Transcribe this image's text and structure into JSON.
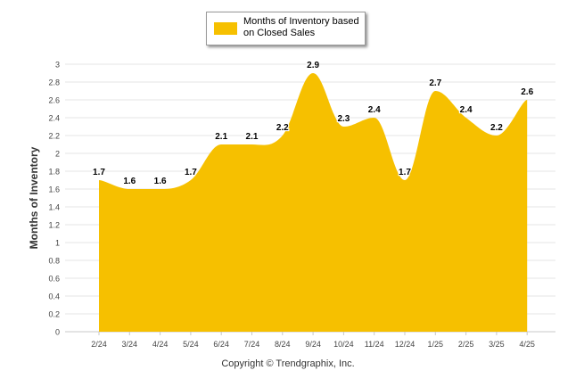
{
  "copyright": "Copyright © Trendgraphix, Inc.",
  "colors": {
    "area": "#F6C000",
    "grid": "#e6e6e6",
    "axis_text": "#444444",
    "label_text": "#000000"
  },
  "chart_data": {
    "type": "area",
    "title": "",
    "xlabel": "",
    "ylabel": "Months of Inventory",
    "ylim": [
      0,
      3
    ],
    "y_ticks": [
      "0",
      "0.2",
      "0.4",
      "0.6",
      "0.8",
      "1",
      "1.2",
      "1.4",
      "1.6",
      "1.8",
      "2",
      "2.2",
      "2.4",
      "2.6",
      "2.8",
      "3"
    ],
    "grid": true,
    "legend_position": "top-center",
    "categories": [
      "2/24",
      "3/24",
      "4/24",
      "5/24",
      "6/24",
      "7/24",
      "8/24",
      "9/24",
      "10/24",
      "11/24",
      "12/24",
      "1/25",
      "2/25",
      "3/25",
      "4/25"
    ],
    "series": [
      {
        "name": "Months of Inventory based on Closed Sales",
        "values": [
          1.7,
          1.6,
          1.6,
          1.7,
          2.1,
          2.1,
          2.2,
          2.9,
          2.3,
          2.4,
          1.7,
          2.7,
          2.4,
          2.2,
          2.6
        ],
        "labels": [
          "1.7",
          "1.6",
          "1.6",
          "1.7",
          "2.1",
          "2.1",
          "2.2",
          "2.9",
          "2.3",
          "2.4",
          "1.7",
          "2.7",
          "2.4",
          "2.2",
          "2.6"
        ]
      }
    ]
  }
}
